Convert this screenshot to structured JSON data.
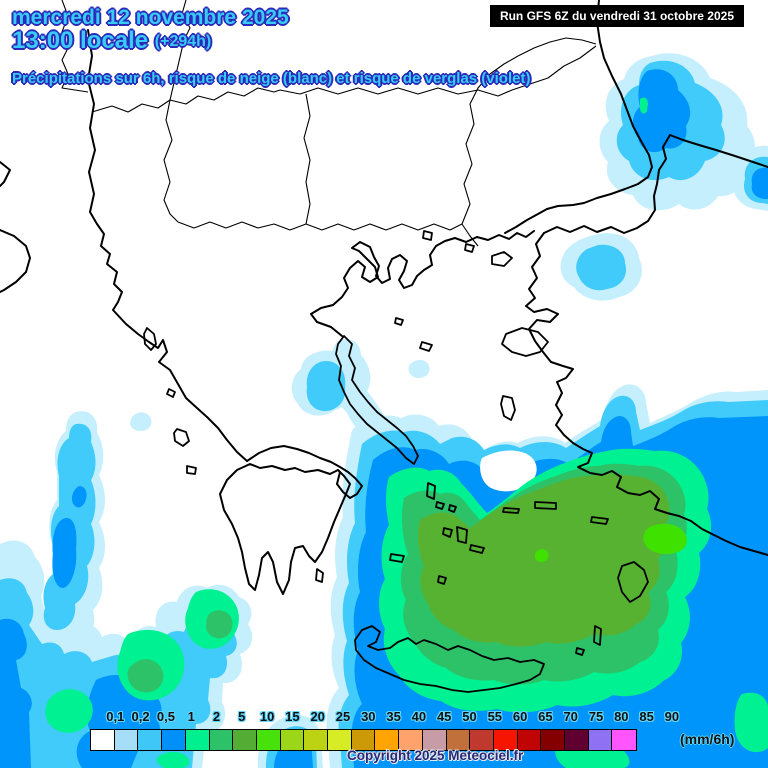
{
  "header": {
    "date_line": "mercredi 12 novembre 2025",
    "time_line": "13:00 locale",
    "offset_label": "(+294h)",
    "subtitle": "Précipitations sur 6h, risque de neige (blanc) et risque de verglas (violet)",
    "run_label": "Run GFS 6Z du vendredi 31 octobre 2025"
  },
  "footer": {
    "copyright": "Copyright 2025 Meteociel.fr"
  },
  "legend": {
    "unit_label": "(mm/6h)",
    "stops": [
      {
        "label": "0,1",
        "color": "#FFFFFF"
      },
      {
        "label": "0,2",
        "color": "#A6DDF7"
      },
      {
        "label": "0,5",
        "color": "#3FC8F7"
      },
      {
        "label": "1",
        "color": "#0090F7"
      },
      {
        "label": "2",
        "color": "#00F090"
      },
      {
        "label": "5",
        "color": "#2EC268"
      },
      {
        "label": "10",
        "color": "#55AC35"
      },
      {
        "label": "15",
        "color": "#47E10B"
      },
      {
        "label": "20",
        "color": "#9BD718"
      },
      {
        "label": "25",
        "color": "#BCD313"
      },
      {
        "label": "30",
        "color": "#D6EC25"
      },
      {
        "label": "35",
        "color": "#CC9A07"
      },
      {
        "label": "40",
        "color": "#FFA401"
      },
      {
        "label": "45",
        "color": "#FFA26B"
      },
      {
        "label": "50",
        "color": "#C79CA7"
      },
      {
        "label": "55",
        "color": "#C1703B"
      },
      {
        "label": "60",
        "color": "#C0392E"
      },
      {
        "label": "65",
        "color": "#F61501"
      },
      {
        "label": "70",
        "color": "#C00404"
      },
      {
        "label": "75",
        "color": "#840000"
      },
      {
        "label": "80",
        "color": "#5F0030"
      },
      {
        "label": "85",
        "color": "#8F72F3"
      },
      {
        "label": "90",
        "color": "#FE55FE"
      }
    ]
  },
  "palette": {
    "rain_0_1": "#C6EFFE",
    "rain_0_2": "#41CBFA",
    "rain_0_5": "#0095FA",
    "rain_1": "#00F191",
    "rain_2": "#2EC268",
    "rain_5": "#58B231",
    "rain_10": "#3FE100",
    "sea_gap": "#FFFFFF",
    "coastline": "#000000"
  }
}
